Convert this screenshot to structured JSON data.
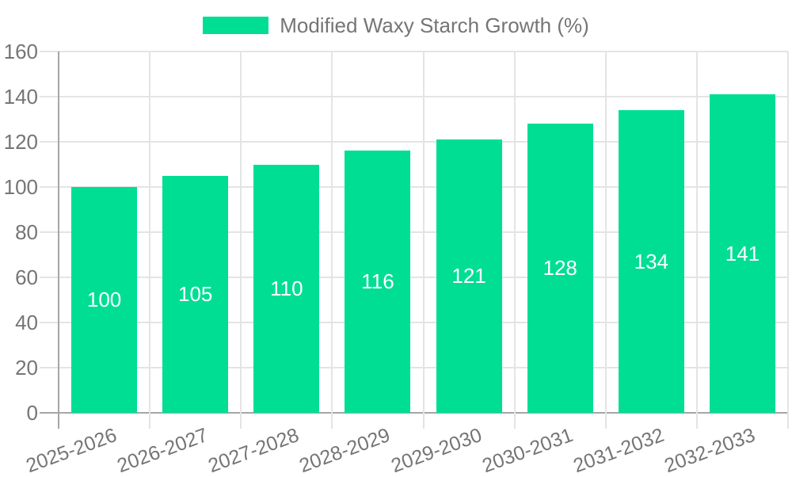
{
  "chart_data": {
    "type": "bar",
    "title": "",
    "legend": "Modified Waxy Starch Growth (%)",
    "legend_position": "top-center",
    "categories": [
      "2025-2026",
      "2026-2027",
      "2027-2028",
      "2028-2029",
      "2029-2030",
      "2030-2031",
      "2031-2032",
      "2032-2033"
    ],
    "values": [
      100,
      105,
      110,
      116,
      121,
      128,
      134,
      141
    ],
    "xlabel": "",
    "ylabel": "",
    "ylim": [
      0,
      160
    ],
    "ytick_step": 20,
    "yticks": [
      0,
      20,
      40,
      60,
      80,
      100,
      120,
      140,
      160
    ],
    "grid": true,
    "bar_color": "#00DE94",
    "value_label_color": "#ffffff",
    "axis_text_color": "#757575",
    "grid_color": "#e4e4e4",
    "axis_line_color": "#a6a6a6"
  }
}
